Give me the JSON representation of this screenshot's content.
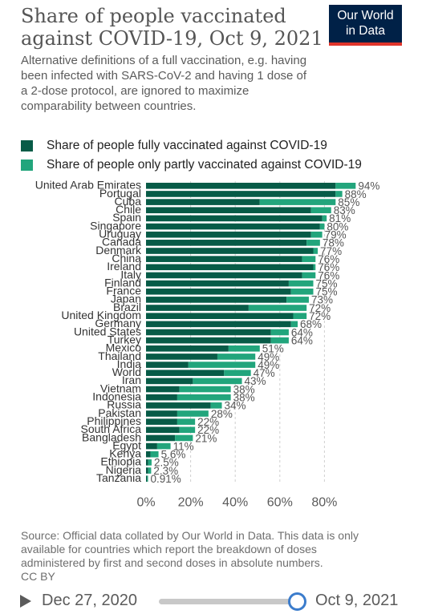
{
  "header": {
    "title": "Share of people vaccinated against COVID-19, Oct 9, 2021",
    "subtitle": "Alternative definitions of a full vaccination, e.g. having been infected with SARS-CoV-2 and having 1 dose of a 2-dose protocol, are ignored to maximize comparability between countries.",
    "logo_line1": "Our World",
    "logo_line2": "in Data"
  },
  "legend": {
    "full_label": "Share of people fully vaccinated against COVID-19",
    "partly_label": "Share of people only partly vaccinated against COVID-19"
  },
  "colors": {
    "full": "#075b47",
    "partly": "#22a57c",
    "logo_bg": "#002147",
    "logo_accent": "#e0352b"
  },
  "chart_data": {
    "type": "bar",
    "orientation": "horizontal",
    "stacked": true,
    "title": "Share of people vaccinated against COVID-19, Oct 9, 2021",
    "xlim": [
      0,
      100
    ],
    "xticks": [
      "0%",
      "20%",
      "40%",
      "60%",
      "80%"
    ],
    "xtick_values": [
      0,
      20,
      40,
      60,
      80
    ],
    "categories": [
      "United Arab Emirates",
      "Portugal",
      "Cuba",
      "Chile",
      "Spain",
      "Singapore",
      "Uruguay",
      "Canada",
      "Denmark",
      "China",
      "Ireland",
      "Italy",
      "Finland",
      "France",
      "Japan",
      "Brazil",
      "United Kingdom",
      "Germany",
      "United States",
      "Turkey",
      "Mexico",
      "Thailand",
      "India",
      "World",
      "Iran",
      "Vietnam",
      "Indonesia",
      "Russia",
      "Pakistan",
      "Philippines",
      "South Africa",
      "Bangladesh",
      "Egypt",
      "Kenya",
      "Ethiopia",
      "Nigeria",
      "Tanzania"
    ],
    "series": [
      {
        "name": "Share of people fully vaccinated against COVID-19",
        "values": [
          85,
          85,
          51,
          74,
          79,
          78,
          74,
          72,
          75,
          70,
          75,
          70,
          64,
          65,
          63,
          46,
          66,
          65,
          56,
          56,
          37,
          32,
          19,
          35,
          21,
          15,
          14,
          29,
          14,
          14,
          15,
          13,
          5,
          2,
          1,
          1,
          0.5
        ]
      },
      {
        "name": "Share of people only partly vaccinated against COVID-19",
        "values": [
          9,
          3,
          34,
          9,
          2,
          2,
          5,
          6,
          2,
          6,
          1,
          6,
          11,
          10,
          10,
          26,
          6,
          3,
          8,
          8,
          14,
          17,
          30,
          12,
          22,
          23,
          24,
          5,
          14,
          8,
          7,
          8,
          6,
          3.6,
          1.5,
          1.3,
          0.41
        ]
      }
    ],
    "labels": [
      "94%",
      "88%",
      "85%",
      "83%",
      "81%",
      "80%",
      "79%",
      "78%",
      "77%",
      "76%",
      "76%",
      "76%",
      "75%",
      "75%",
      "73%",
      "72%",
      "72%",
      "68%",
      "64%",
      "64%",
      "51%",
      "49%",
      "49%",
      "47%",
      "43%",
      "38%",
      "38%",
      "34%",
      "28%",
      "22%",
      "22%",
      "21%",
      "11%",
      "5.6%",
      "2.5%",
      "2.3%",
      "0.91%"
    ]
  },
  "footer": {
    "source": "Source: Official data collated by Our World in Data. This data is only available for countries which report the breakdown of doses administered by first and second doses in absolute numbers.",
    "license": "CC BY"
  },
  "timeline": {
    "start_label": "Dec 27, 2020",
    "end_label": "Oct 9, 2021"
  }
}
